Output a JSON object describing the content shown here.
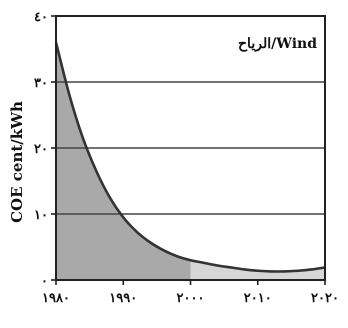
{
  "chart_data": {
    "type": "area",
    "ylabel": "COE cent/kWh",
    "ylim": [
      0,
      40
    ],
    "xlim": [
      1980,
      2020
    ],
    "y_ticks": [
      0,
      10,
      20,
      30,
      40
    ],
    "x_ticks": [
      1980,
      1990,
      2000,
      2010,
      2020
    ],
    "y_tick_labels": [
      "٠",
      "١٠",
      "٢٠",
      "٣٠",
      "٤٠"
    ],
    "x_tick_labels": [
      "١٩٨٠",
      "١٩٩٠",
      "٢٠٠٠",
      "٢٠١٠",
      "٢٠٢٠"
    ],
    "grid": "horizontal",
    "series": [
      {
        "name": "الرياح/Wind",
        "x": [
          1980,
          1982,
          1984,
          1986,
          1988,
          1990,
          1992,
          1994,
          1996,
          1998,
          2000,
          2002,
          2004,
          2006,
          2008,
          2010,
          2012,
          2014,
          2016,
          2018,
          2020
        ],
        "values": [
          36,
          28,
          21.5,
          16.5,
          12.5,
          9.5,
          7.3,
          5.7,
          4.5,
          3.6,
          3,
          2.6,
          2.2,
          1.9,
          1.6,
          1.4,
          1.3,
          1.3,
          1.4,
          1.6,
          1.9
        ],
        "shaded_until": 2000
      }
    ]
  },
  "colors": {
    "shade_dark": "#a9a9a9",
    "shade_light": "#d6d6d6",
    "line": "#333333",
    "axis": "#222222",
    "grid": "#444444"
  }
}
